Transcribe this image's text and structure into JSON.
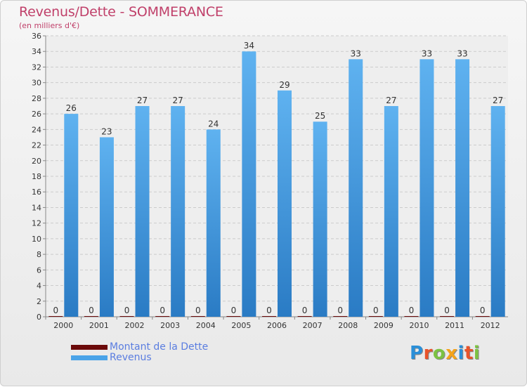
{
  "header": {
    "title": "Revenus/Dette - SOMMERANCE",
    "subtitle": "(en milliers d'€)"
  },
  "chart_data": {
    "type": "bar",
    "categories": [
      "2000",
      "2001",
      "2002",
      "2003",
      "2004",
      "2005",
      "2006",
      "2007",
      "2008",
      "2009",
      "2010",
      "2011",
      "2012"
    ],
    "series": [
      {
        "name": "Montant de la Dette",
        "color": "#6b0a0a",
        "values": [
          0,
          0,
          0,
          0,
          0,
          0,
          0,
          0,
          0,
          0,
          0,
          0,
          0
        ]
      },
      {
        "name": "Revenus",
        "color": "#4aa3e8",
        "values": [
          26,
          23,
          27,
          27,
          24,
          34,
          29,
          25,
          33,
          27,
          33,
          33,
          27
        ]
      }
    ],
    "ylim": [
      0,
      36
    ],
    "yticks": [
      0,
      2,
      4,
      6,
      8,
      10,
      12,
      14,
      16,
      18,
      20,
      22,
      24,
      26,
      28,
      30,
      32,
      34,
      36
    ],
    "grid": true,
    "legend_position": "bottom-left"
  },
  "legend": {
    "items": [
      {
        "label": "Montant de la Dette",
        "color": "#6b0a0a"
      },
      {
        "label": "Revenus",
        "color": "#4aa3e8"
      }
    ]
  },
  "logo": {
    "letters": [
      "P",
      "r",
      "o",
      "x",
      "i",
      "t",
      "i"
    ],
    "colors": [
      "#2a8fd8",
      "#e8532a",
      "#7cc242",
      "#f4a31b",
      "#2a8fd8",
      "#e8532a",
      "#7cc242"
    ]
  }
}
